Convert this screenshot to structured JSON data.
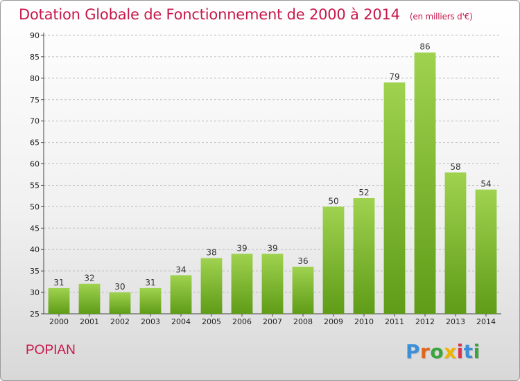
{
  "header": {
    "title": "Dotation Globale de Fonctionnement de 2000 à 2014",
    "unit": "(en milliers d'€)"
  },
  "footer": {
    "place": "POPIAN",
    "logo": "Proxiti"
  },
  "colors": {
    "bar_top": "#9fd24f",
    "bar_bottom": "#5f9c17",
    "accent": "#c8174a"
  },
  "chart_data": {
    "type": "bar",
    "title": "Dotation Globale de Fonctionnement de 2000 à 2014",
    "subtitle": "(en milliers d'€)",
    "categories": [
      "2000",
      "2001",
      "2002",
      "2003",
      "2004",
      "2005",
      "2006",
      "2007",
      "2008",
      "2009",
      "2010",
      "2011",
      "2012",
      "2013",
      "2014"
    ],
    "values": [
      31,
      32,
      30,
      31,
      34,
      38,
      39,
      39,
      36,
      50,
      52,
      79,
      86,
      58,
      54
    ],
    "xlabel": "",
    "ylabel": "",
    "ylim": [
      25,
      90
    ],
    "yticks": [
      25,
      30,
      35,
      40,
      45,
      50,
      55,
      60,
      65,
      70,
      75,
      80,
      85,
      90
    ],
    "grid": "horizontal dashed"
  }
}
